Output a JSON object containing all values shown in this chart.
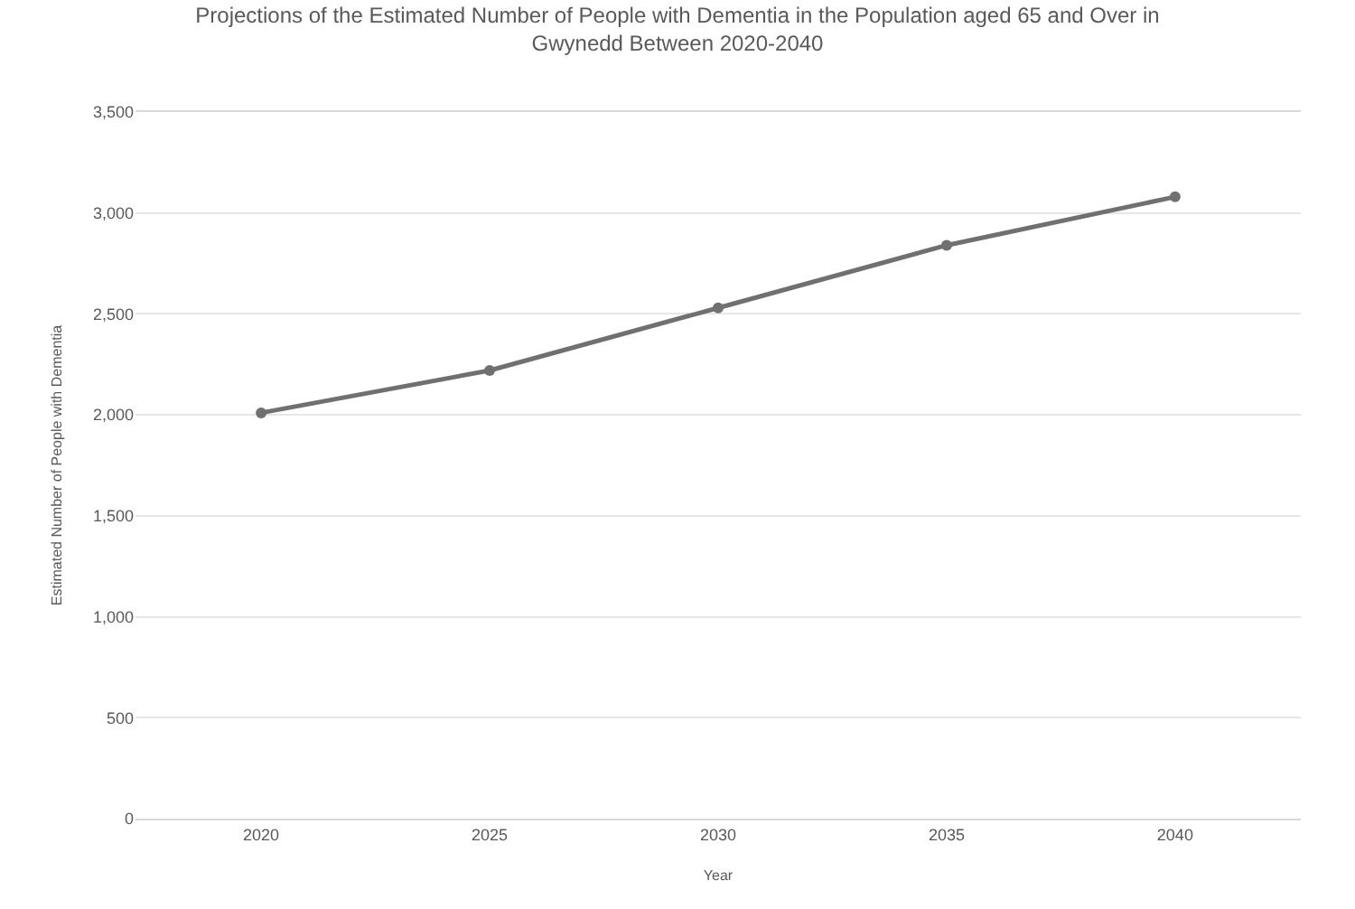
{
  "chart_data": {
    "type": "line",
    "title": "Projections of the Estimated Number of People with Dementia in the Population aged 65 and Over in Gwynedd Between 2020-2040",
    "xlabel": "Year",
    "ylabel": "Estimated Number of People with Dementia",
    "categories": [
      "2020",
      "2025",
      "2030",
      "2035",
      "2040"
    ],
    "series": [
      {
        "color": "#707070",
        "values": [
          2010,
          2220,
          2530,
          2840,
          3080
        ]
      }
    ],
    "ylim": [
      0,
      3500
    ],
    "yticks": [
      {
        "value": 0,
        "label": "0"
      },
      {
        "value": 500,
        "label": "500"
      },
      {
        "value": 1000,
        "label": "1,000"
      },
      {
        "value": 1500,
        "label": "1,500"
      },
      {
        "value": 2000,
        "label": "2,000"
      },
      {
        "value": 2500,
        "label": "2,500"
      },
      {
        "value": 3000,
        "label": "3,000"
      },
      {
        "value": 3500,
        "label": "3,500"
      }
    ],
    "grid": "y",
    "marker": "circle",
    "line_style": "solid"
  }
}
